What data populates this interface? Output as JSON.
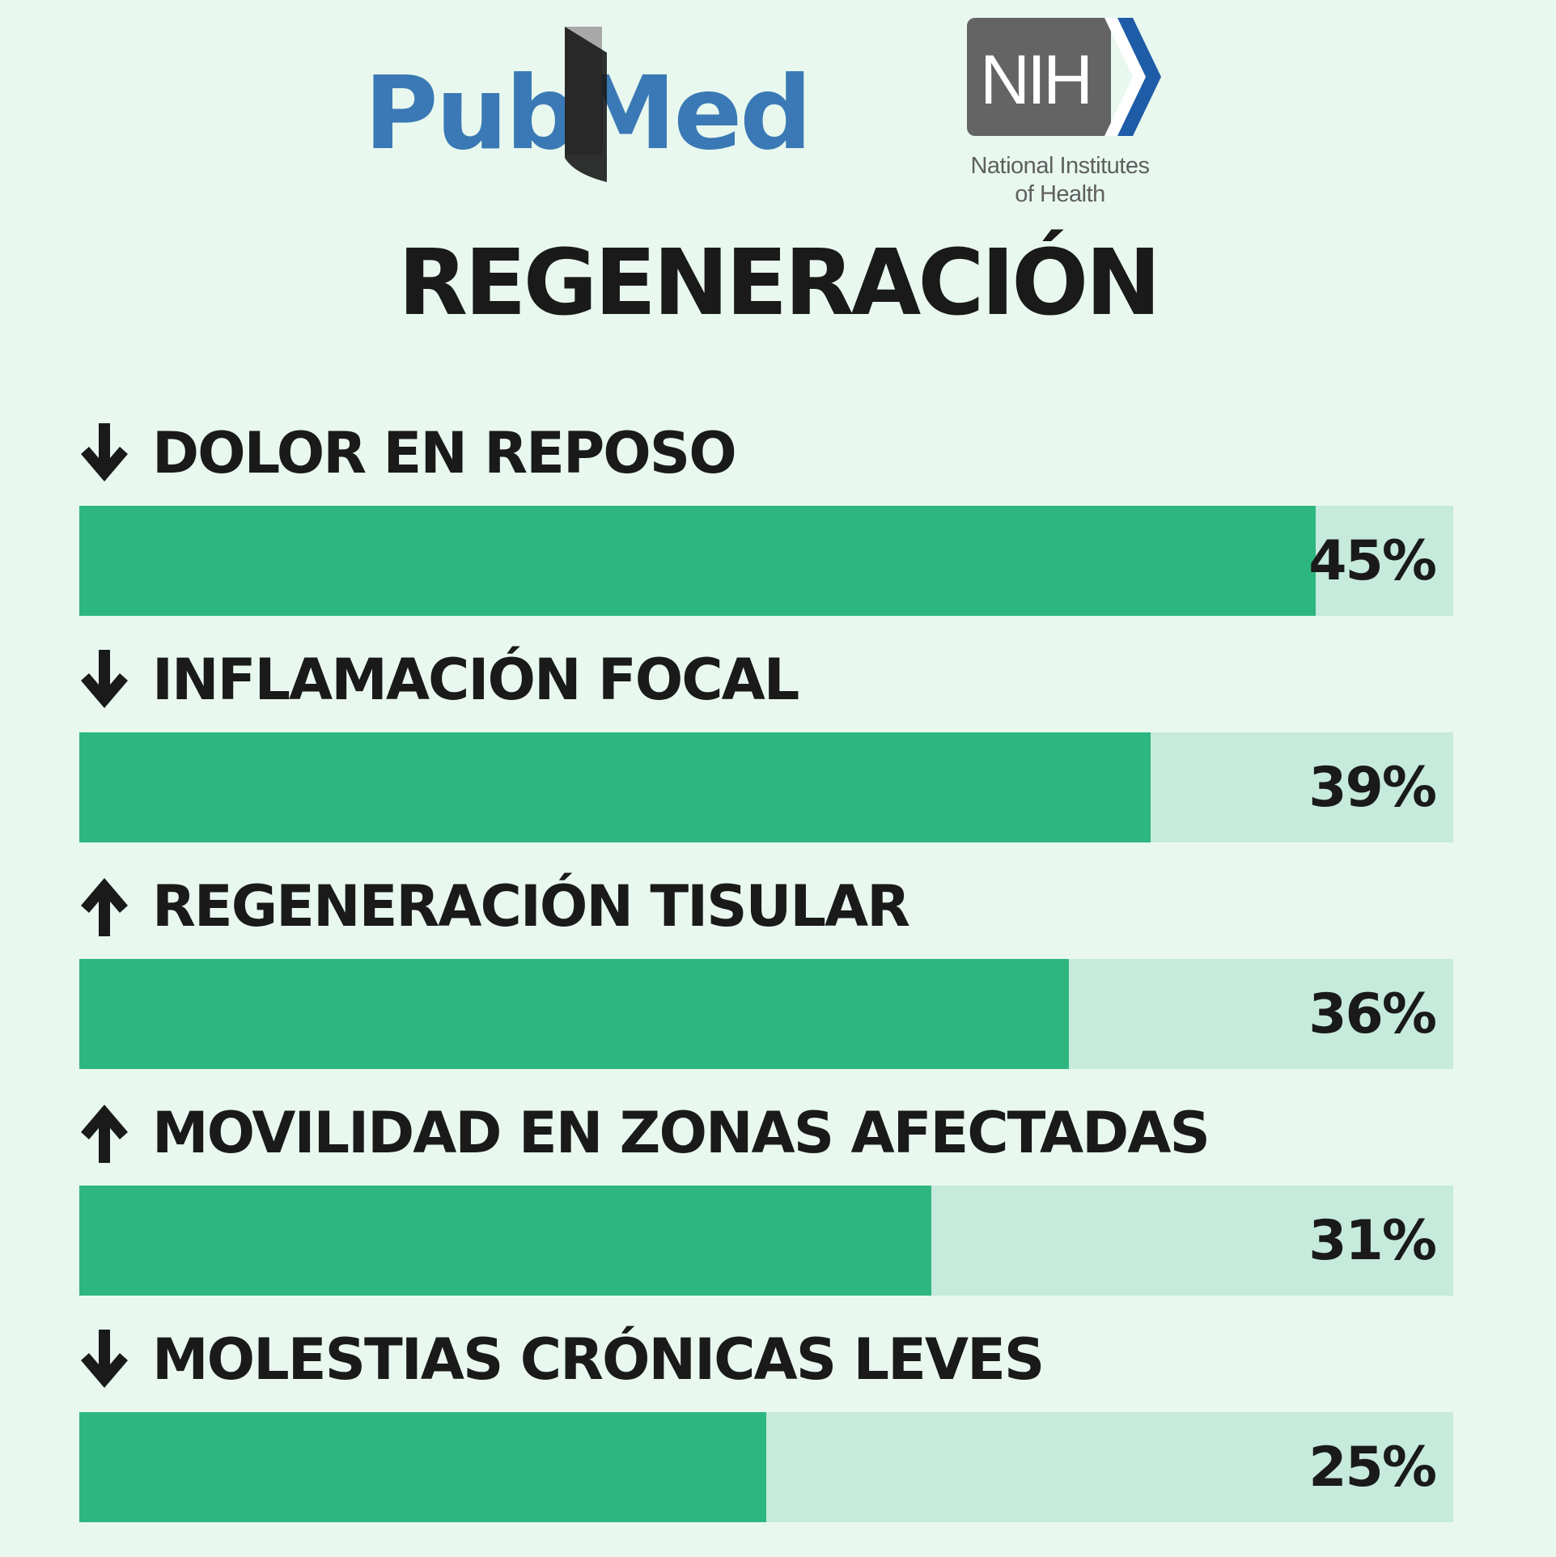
{
  "logos": {
    "pubmed": "PubMed",
    "nih_mark": "NIH",
    "nih_line1": "National Institutes",
    "nih_line2": "of Health"
  },
  "colors": {
    "background": "#e8f8ef",
    "bar_fill": "#2db680",
    "bar_track": "#c6eadb",
    "text": "#1a1a1a",
    "pubmed_blue": "#3a79b5",
    "nih_gray": "#646464",
    "nih_blue": "#1f5ca8"
  },
  "chart_data": {
    "type": "bar",
    "orientation": "horizontal",
    "title": "REGENERACIÓN",
    "categories": [
      "DOLOR EN REPOSO",
      "INFLAMACIÓN FOCAL",
      "REGENERACIÓN TISULAR",
      "MOVILIDAD EN ZONAS AFECTADAS",
      "MOLESTIAS CRÓNICAS LEVES"
    ],
    "values": [
      45,
      39,
      36,
      31,
      25
    ],
    "value_labels": [
      "45%",
      "39%",
      "36%",
      "31%",
      "25%"
    ],
    "directions": [
      "down",
      "down",
      "up",
      "up",
      "down"
    ],
    "xlim": [
      0,
      50
    ],
    "grid": false,
    "legend": "none"
  }
}
